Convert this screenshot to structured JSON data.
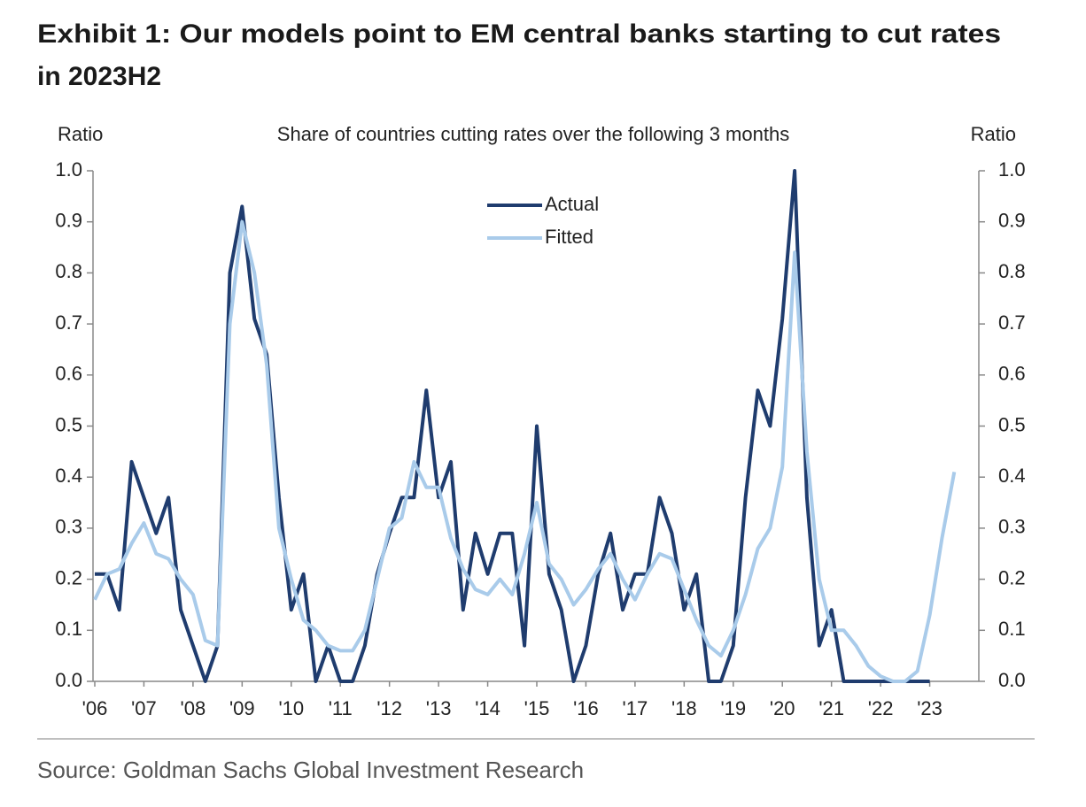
{
  "chart_data": {
    "type": "line",
    "title": "Exhibit 1: Our models point to EM central banks starting to cut rates in 2023H2",
    "subtitle": "Share of countries cutting rates over the following 3 months",
    "y_label": "Ratio",
    "y2_label": "Ratio",
    "source": "Source: Goldman Sachs Global Investment Research",
    "x": [
      2006,
      2006.25,
      2006.5,
      2006.75,
      2007,
      2007.25,
      2007.5,
      2007.75,
      2008,
      2008.25,
      2008.5,
      2008.75,
      2009,
      2009.25,
      2009.5,
      2009.75,
      2010,
      2010.25,
      2010.5,
      2010.75,
      2011,
      2011.25,
      2011.5,
      2011.75,
      2012,
      2012.25,
      2012.5,
      2012.75,
      2013,
      2013.25,
      2013.5,
      2013.75,
      2014,
      2014.25,
      2014.5,
      2014.75,
      2015,
      2015.25,
      2015.5,
      2015.75,
      2016,
      2016.25,
      2016.5,
      2016.75,
      2017,
      2017.25,
      2017.5,
      2017.75,
      2018,
      2018.25,
      2018.5,
      2018.75,
      2019,
      2019.25,
      2019.5,
      2019.75,
      2020,
      2020.25,
      2020.5,
      2020.75,
      2021,
      2021.25,
      2021.5,
      2021.75,
      2022,
      2022.25,
      2022.5,
      2022.75,
      2023,
      2023.25,
      2023.5
    ],
    "series": [
      {
        "name": "Actual",
        "color": "#1f3c6e",
        "values": [
          0.21,
          0.21,
          0.14,
          0.43,
          0.36,
          0.29,
          0.36,
          0.14,
          0.07,
          0,
          0.07,
          0.8,
          0.93,
          0.71,
          0.64,
          0.36,
          0.14,
          0.21,
          0,
          0.07,
          0,
          0,
          0.07,
          0.21,
          0.29,
          0.36,
          0.36,
          0.57,
          0.36,
          0.43,
          0.14,
          0.29,
          0.21,
          0.29,
          0.29,
          0.07,
          0.5,
          0.21,
          0.14,
          0,
          0.07,
          0.21,
          0.29,
          0.14,
          0.21,
          0.21,
          0.36,
          0.29,
          0.14,
          0.21,
          0,
          0,
          0.07,
          0.36,
          0.57,
          0.5,
          0.71,
          1,
          0.36,
          0.07,
          0.14,
          0,
          0,
          0,
          0,
          0,
          0,
          0,
          0,
          null,
          null
        ]
      },
      {
        "name": "Fitted",
        "color": "#a9cbea",
        "values": [
          0.16,
          0.21,
          0.22,
          0.27,
          0.31,
          0.25,
          0.24,
          0.2,
          0.17,
          0.08,
          0.07,
          0.7,
          0.9,
          0.8,
          0.62,
          0.3,
          0.2,
          0.12,
          0.1,
          0.07,
          0.06,
          0.06,
          0.1,
          0.2,
          0.3,
          0.32,
          0.43,
          0.38,
          0.38,
          0.28,
          0.22,
          0.18,
          0.17,
          0.2,
          0.17,
          0.25,
          0.35,
          0.23,
          0.2,
          0.15,
          0.18,
          0.22,
          0.25,
          0.2,
          0.16,
          0.21,
          0.25,
          0.24,
          0.18,
          0.12,
          0.07,
          0.05,
          0.1,
          0.17,
          0.26,
          0.3,
          0.42,
          0.84,
          0.45,
          0.2,
          0.1,
          0.1,
          0.07,
          0.03,
          0.01,
          0,
          0,
          0.02,
          0.13,
          0.28,
          0.41
        ]
      }
    ],
    "xlim": [
      2006,
      2024
    ],
    "xticks": [
      {
        "value": 2006,
        "label": "'06"
      },
      {
        "value": 2007,
        "label": "'07"
      },
      {
        "value": 2008,
        "label": "'08"
      },
      {
        "value": 2009,
        "label": "'09"
      },
      {
        "value": 2010,
        "label": "'10"
      },
      {
        "value": 2011,
        "label": "'11"
      },
      {
        "value": 2012,
        "label": "'12"
      },
      {
        "value": 2013,
        "label": "'13"
      },
      {
        "value": 2014,
        "label": "'14"
      },
      {
        "value": 2015,
        "label": "'15"
      },
      {
        "value": 2016,
        "label": "'16"
      },
      {
        "value": 2017,
        "label": "'17"
      },
      {
        "value": 2018,
        "label": "'18"
      },
      {
        "value": 2019,
        "label": "'19"
      },
      {
        "value": 2020,
        "label": "'20"
      },
      {
        "value": 2021,
        "label": "'21"
      },
      {
        "value": 2022,
        "label": "'22"
      },
      {
        "value": 2023,
        "label": "'23"
      }
    ],
    "ylim": [
      0,
      1
    ],
    "yticks": [
      {
        "value": 0,
        "label": "0.0"
      },
      {
        "value": 0.1,
        "label": "0.1"
      },
      {
        "value": 0.2,
        "label": "0.2"
      },
      {
        "value": 0.3,
        "label": "0.3"
      },
      {
        "value": 0.4,
        "label": "0.4"
      },
      {
        "value": 0.5,
        "label": "0.5"
      },
      {
        "value": 0.6,
        "label": "0.6"
      },
      {
        "value": 0.7,
        "label": "0.7"
      },
      {
        "value": 0.8,
        "label": "0.8"
      },
      {
        "value": 0.9,
        "label": "0.9"
      },
      {
        "value": 1,
        "label": "1.0"
      }
    ],
    "y2lim": [
      0,
      1
    ],
    "y2ticks": [
      {
        "value": 0,
        "label": "0.0"
      },
      {
        "value": 0.1,
        "label": "0.1"
      },
      {
        "value": 0.2,
        "label": "0.2"
      },
      {
        "value": 0.3,
        "label": "0.3"
      },
      {
        "value": 0.4,
        "label": "0.4"
      },
      {
        "value": 0.5,
        "label": "0.5"
      },
      {
        "value": 0.6,
        "label": "0.6"
      },
      {
        "value": 0.7,
        "label": "0.7"
      },
      {
        "value": 0.8,
        "label": "0.8"
      },
      {
        "value": 0.9,
        "label": "0.9"
      },
      {
        "value": 1,
        "label": "1.0"
      }
    ],
    "legend": "top"
  }
}
